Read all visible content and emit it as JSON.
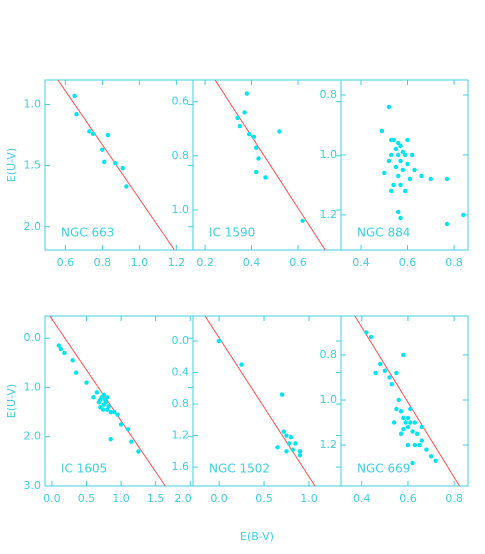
{
  "chart_data": [
    {
      "type": "scatter",
      "label": "NGC 663",
      "ylabel": "E(U-V)",
      "color": "#00e5ee",
      "x": [
        0.65,
        0.66,
        0.73,
        0.75,
        0.83,
        0.8,
        0.81,
        0.87,
        0.91,
        0.93
      ],
      "y": [
        0.93,
        1.08,
        1.22,
        1.24,
        1.25,
        1.37,
        1.47,
        1.48,
        1.52,
        1.67
      ],
      "xlim": [
        0.49,
        1.29
      ],
      "ylim": [
        0.8,
        2.19
      ],
      "y_inverted": true,
      "xticks": [
        0.6,
        0.8,
        {
          "value": 1.0,
          "label": "1.0"
        },
        1.2
      ],
      "yticks": [
        {
          "value": 1.0,
          "label": "1.0"
        },
        1.5,
        {
          "value": 2.0,
          "label": "2.0"
        }
      ],
      "fit_line": {
        "x": [
          0.56,
          1.19
        ],
        "y": [
          0.8,
          2.19
        ],
        "color": "#ff5050"
      }
    },
    {
      "type": "scatter",
      "label": "IC 1590",
      "color": "#00e5ee",
      "x": [
        0.34,
        0.35,
        0.37,
        0.38,
        0.39,
        0.41,
        0.42,
        0.43,
        0.42,
        0.46,
        0.52,
        0.62
      ],
      "y": [
        0.66,
        0.69,
        0.64,
        0.57,
        0.72,
        0.73,
        0.77,
        0.81,
        0.86,
        0.88,
        0.71,
        1.04
      ],
      "xlim": [
        0.148,
        0.785
      ],
      "ylim": [
        0.52,
        1.148
      ],
      "y_inverted": true,
      "xticks": [
        0.2,
        0.4,
        0.6
      ],
      "yticks": [
        0.6,
        0.8,
        {
          "value": 1.0,
          "label": "1.0"
        }
      ],
      "fit_line": {
        "x": [
          0.243,
          0.717
        ],
        "y": [
          0.52,
          1.148
        ],
        "color": "#ff5050"
      }
    },
    {
      "type": "scatter",
      "label": "NGC 884",
      "color": "#00e5ee",
      "x": [
        0.52,
        0.49,
        0.53,
        0.54,
        0.56,
        0.57,
        0.6,
        0.55,
        0.58,
        0.53,
        0.56,
        0.59,
        0.62,
        0.52,
        0.57,
        0.6,
        0.55,
        0.58,
        0.63,
        0.5,
        0.56,
        0.61,
        0.54,
        0.57,
        0.59,
        0.66,
        0.7,
        0.56,
        0.57,
        0.77,
        0.77,
        0.84,
        0.53
      ],
      "y": [
        0.84,
        0.92,
        0.95,
        0.95,
        0.96,
        0.97,
        0.95,
        0.98,
        0.99,
        1.0,
        1.0,
        1.0,
        1.0,
        1.02,
        1.02,
        1.03,
        1.04,
        1.05,
        1.05,
        1.06,
        1.07,
        1.08,
        1.1,
        1.1,
        1.12,
        1.07,
        1.08,
        1.19,
        1.21,
        1.08,
        1.23,
        1.2,
        1.12
      ],
      "xlim": [
        0.314,
        0.86
      ],
      "ylim": [
        0.75,
        1.317
      ],
      "y_inverted": true,
      "xticks": [
        0.4,
        0.6,
        0.8
      ],
      "yticks": [
        0.8,
        {
          "value": 1.0,
          "label": "1.0"
        },
        1.2
      ]
    },
    {
      "type": "scatter",
      "label": "IC 1605",
      "ylabel": "E(U-V)",
      "color": "#00e5ee",
      "x": [
        0.1,
        0.13,
        0.18,
        0.3,
        0.35,
        0.5,
        0.6,
        0.65,
        0.7,
        0.72,
        0.75,
        0.75,
        0.78,
        0.8,
        0.8,
        0.7,
        0.82,
        0.85,
        0.9,
        0.85,
        0.95,
        1.0,
        1.1,
        1.15,
        1.25,
        0.68,
        0.74,
        0.77
      ],
      "y": [
        0.15,
        0.22,
        0.3,
        0.45,
        0.7,
        0.9,
        1.2,
        1.1,
        1.25,
        1.2,
        1.15,
        1.35,
        1.3,
        1.2,
        1.45,
        1.4,
        1.38,
        1.5,
        1.5,
        2.05,
        1.55,
        1.75,
        1.85,
        2.1,
        2.3,
        1.3,
        1.45,
        1.25
      ],
      "xlim": [
        -0.1,
        2.04
      ],
      "ylim": [
        -0.45,
        3.0
      ],
      "y_inverted": true,
      "xticks": [
        {
          "value": 0,
          "label": "0.0"
        },
        0.5,
        {
          "value": 1.0,
          "label": "1.0"
        },
        1.5,
        {
          "value": 2.0,
          "label": "2.0"
        }
      ],
      "yticks": [
        {
          "value": 0,
          "label": "0.0"
        },
        {
          "value": 1.0,
          "label": "1.0"
        },
        {
          "value": 2.0,
          "label": "2.0"
        },
        {
          "value": 3.0,
          "label": "3.0"
        }
      ],
      "fit_line": {
        "x": [
          -0.03,
          1.64
        ],
        "y": [
          -0.45,
          3.0
        ],
        "color": "#ff5050"
      }
    },
    {
      "type": "scatter",
      "label": "NGC 1502",
      "xlabel": "E(B-V)",
      "color": "#00e5ee",
      "x": [
        0.0,
        0.25,
        0.7,
        0.72,
        0.75,
        0.8,
        0.78,
        0.85,
        0.82,
        0.9,
        0.9,
        0.65,
        0.75
      ],
      "y": [
        0.0,
        0.3,
        0.68,
        1.15,
        1.2,
        1.22,
        1.3,
        1.3,
        1.38,
        1.4,
        1.45,
        1.35,
        1.4
      ],
      "xlim": [
        -0.29,
        1.356
      ],
      "ylim": [
        -0.317,
        1.84
      ],
      "y_inverted": true,
      "xticks": [
        {
          "value": 0,
          "label": "0.0"
        },
        0.5,
        {
          "value": 1.0,
          "label": "1.0"
        }
      ],
      "yticks": [
        {
          "value": 0,
          "label": "0.0"
        },
        0.4,
        0.8,
        1.2,
        1.6
      ],
      "fit_line": {
        "x": [
          -0.156,
          1.067
        ],
        "y": [
          -0.317,
          1.84
        ],
        "color": "#ff5050"
      }
    },
    {
      "type": "scatter",
      "label": "NGC 669",
      "color": "#00e5ee",
      "x": [
        0.42,
        0.44,
        0.46,
        0.48,
        0.5,
        0.52,
        0.53,
        0.55,
        0.58,
        0.56,
        0.55,
        0.57,
        0.58,
        0.59,
        0.6,
        0.6,
        0.61,
        0.62,
        0.58,
        0.63,
        0.64,
        0.65,
        0.6,
        0.66,
        0.68,
        0.62,
        0.7,
        0.72,
        0.57,
        0.54,
        0.61,
        0.66,
        0.63
      ],
      "y": [
        0.7,
        0.72,
        0.88,
        0.84,
        0.87,
        0.9,
        0.93,
        0.88,
        0.8,
        1.0,
        1.04,
        1.05,
        1.08,
        1.1,
        1.08,
        1.12,
        1.1,
        1.14,
        1.13,
        1.1,
        1.15,
        1.2,
        1.2,
        1.18,
        1.22,
        1.28,
        1.25,
        1.27,
        1.15,
        1.1,
        1.04,
        1.12,
        1.2
      ],
      "xlim": [
        0.31,
        0.86
      ],
      "ylim": [
        0.627,
        1.382
      ],
      "y_inverted": true,
      "xticks": [
        0.4,
        0.6,
        0.8
      ],
      "yticks": [
        0.8,
        {
          "value": 1.0,
          "label": "1.0"
        },
        1.2
      ],
      "fit_line": {
        "x": [
          0.37,
          0.823
        ],
        "y": [
          0.627,
          1.382
        ],
        "color": "#ff5050"
      }
    }
  ]
}
